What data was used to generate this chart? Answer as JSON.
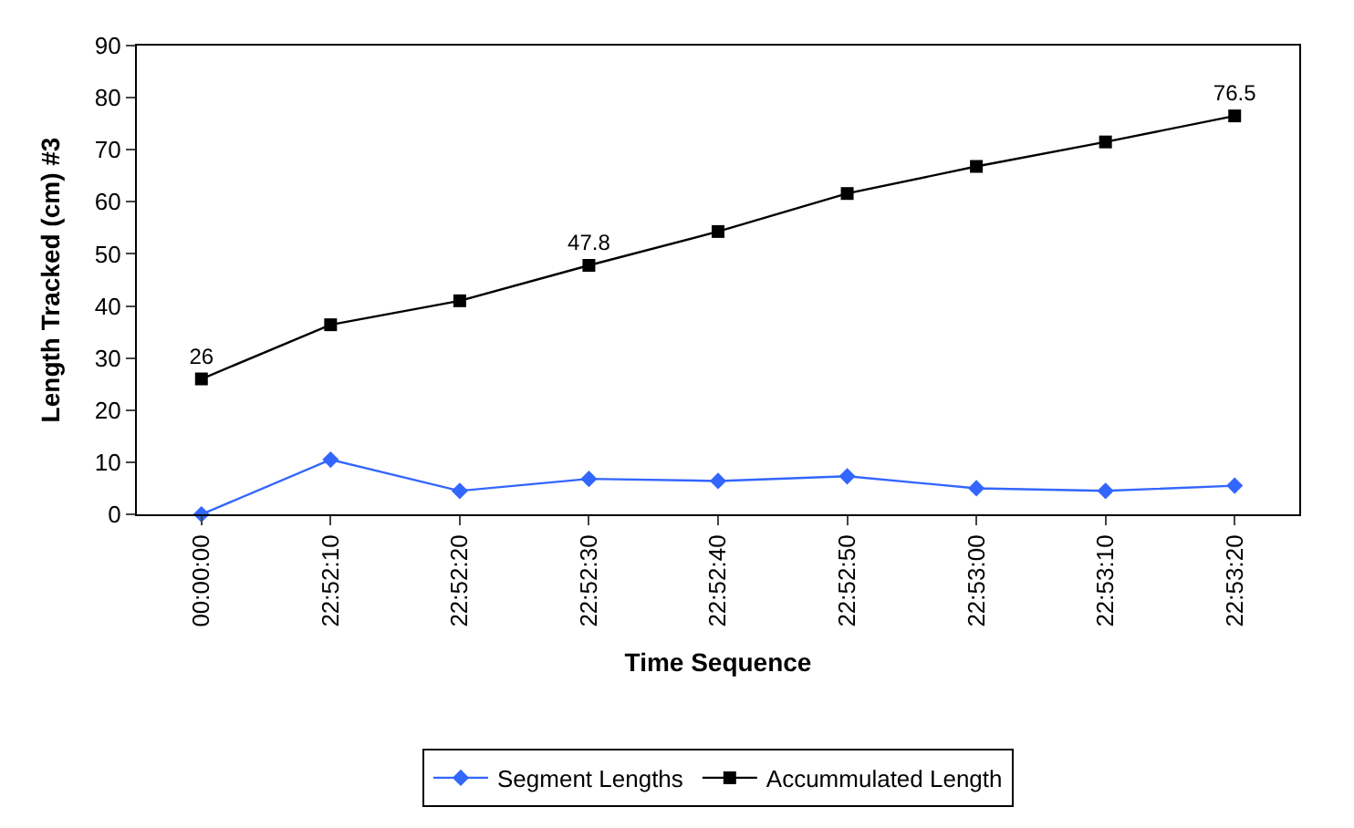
{
  "chart_data": {
    "type": "line",
    "xlabel": "Time Sequence",
    "ylabel": "Length Tracked (cm) #3",
    "categories": [
      "00:00:00",
      "22:52:10",
      "22:52:20",
      "22:52:30",
      "22:52:40",
      "22:52:50",
      "22:53:00",
      "22:53:10",
      "22:53:20"
    ],
    "series": [
      {
        "name": "Segment Lengths",
        "color": "#3366ff",
        "marker": "diamond",
        "values": [
          0,
          10.5,
          4.5,
          6.8,
          6.4,
          7.3,
          5.0,
          4.5,
          5.5
        ]
      },
      {
        "name": "Accummulated Length",
        "color": "#000000",
        "marker": "square",
        "values": [
          26,
          36.4,
          41,
          47.8,
          54.3,
          61.6,
          66.8,
          71.5,
          76.5
        ],
        "value_labels": [
          "26",
          null,
          null,
          "47.8",
          null,
          null,
          null,
          null,
          "76.5"
        ]
      }
    ],
    "ylim": [
      0,
      90
    ],
    "yticks": [
      0,
      10,
      20,
      30,
      40,
      50,
      60,
      70,
      80,
      90
    ],
    "grid": false,
    "legend": "bottom"
  }
}
